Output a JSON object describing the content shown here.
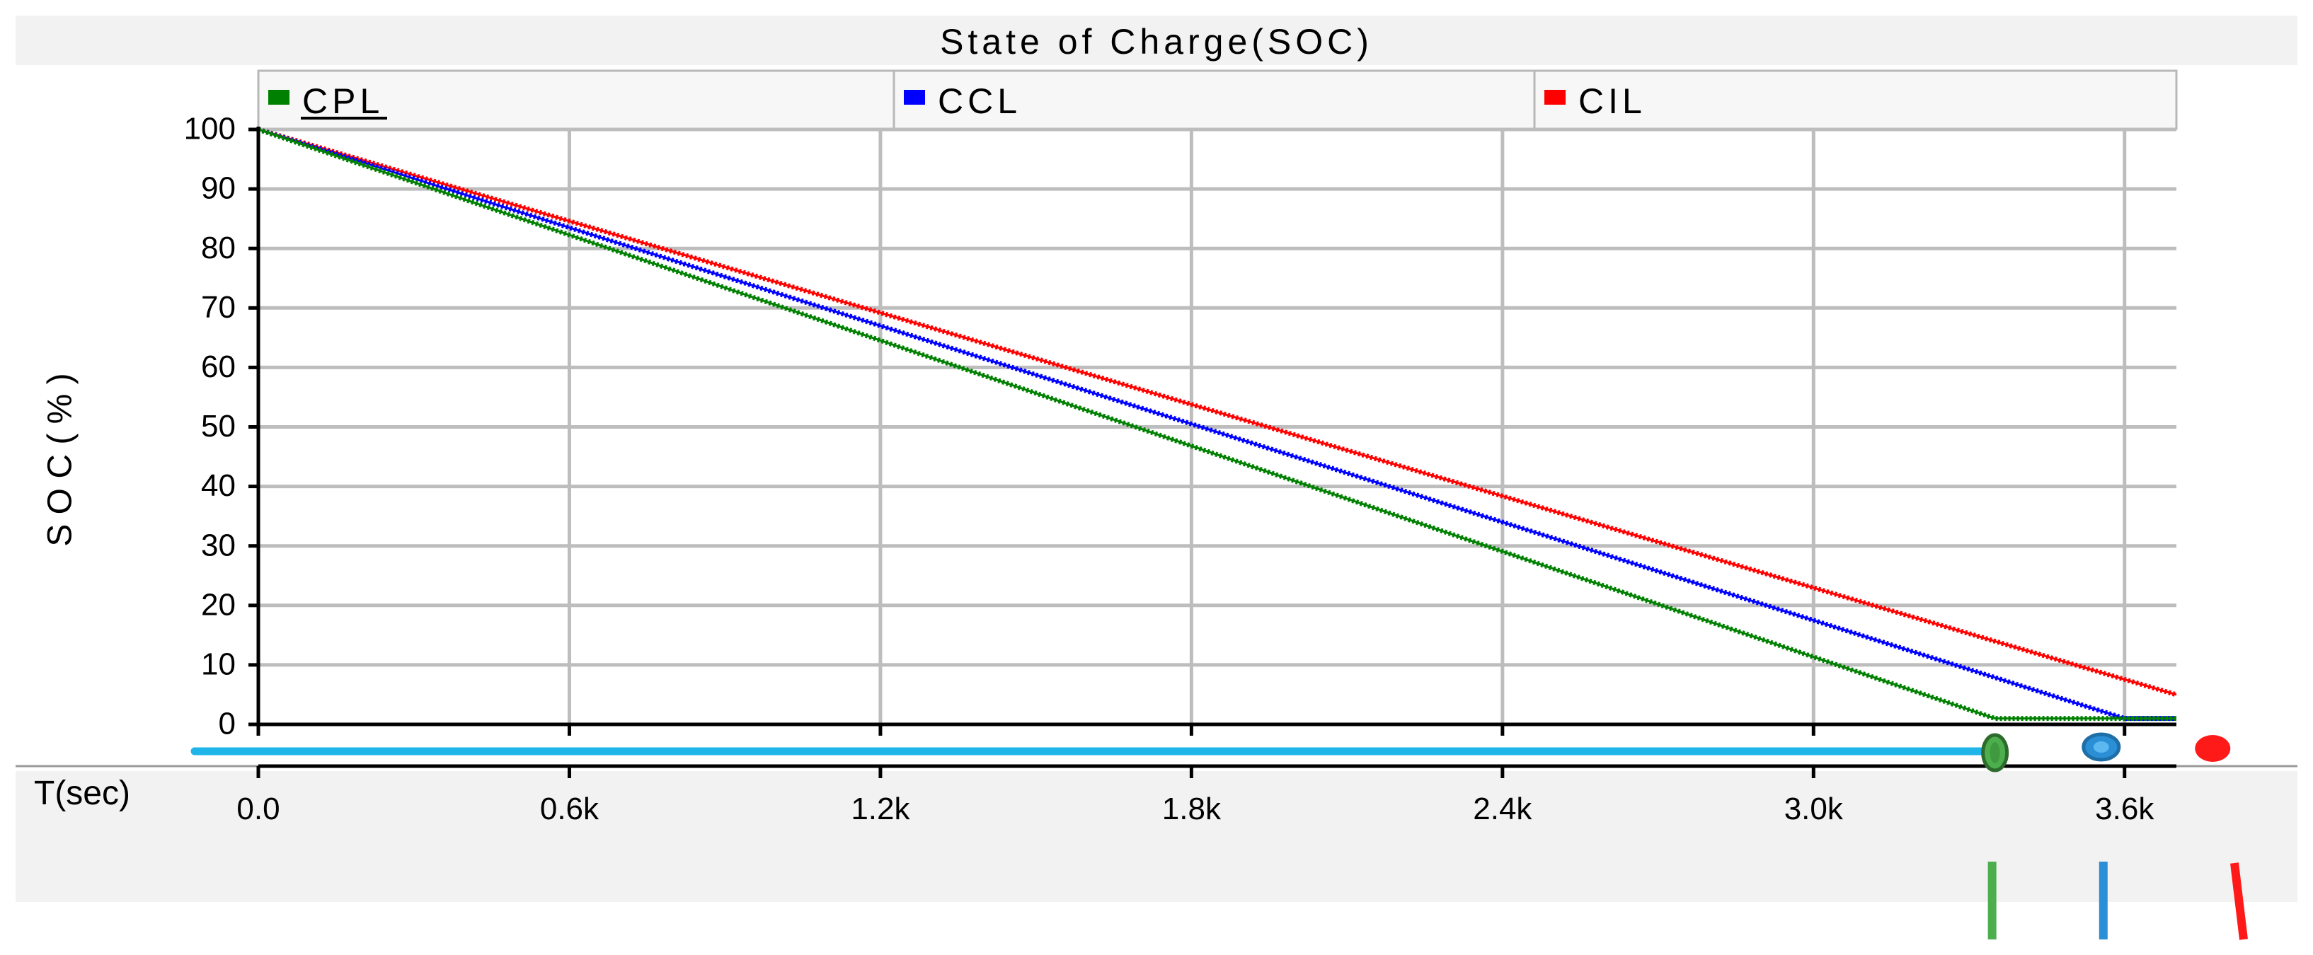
{
  "chart_data": {
    "type": "line",
    "title": "State of Charge(SOC)",
    "ylabel": "S O C  ( % )",
    "xlabel": "T(sec)",
    "xlim": [
      0,
      3700
    ],
    "ylim": [
      0,
      100
    ],
    "yticks": [
      0,
      10,
      20,
      30,
      40,
      50,
      60,
      70,
      80,
      90,
      100
    ],
    "xticks": [
      {
        "value": 0,
        "label": "0.0"
      },
      {
        "value": 600,
        "label": "0.6k"
      },
      {
        "value": 1200,
        "label": "1.2k"
      },
      {
        "value": 1800,
        "label": "1.8k"
      },
      {
        "value": 2400,
        "label": "2.4k"
      },
      {
        "value": 3000,
        "label": "3.0k"
      },
      {
        "value": 3600,
        "label": "3.6k"
      }
    ],
    "grid": true,
    "legend_position": "top",
    "series": [
      {
        "name": "CPL",
        "color": "#008000",
        "x": [
          0,
          3350,
          3700
        ],
        "y": [
          100,
          1,
          1
        ]
      },
      {
        "name": "CCL",
        "color": "#0000ff",
        "x": [
          0,
          3600,
          3700
        ],
        "y": [
          100,
          1,
          1
        ]
      },
      {
        "name": "CIL",
        "color": "#ff0000",
        "x": [
          0,
          3700
        ],
        "y": [
          100,
          5
        ]
      }
    ],
    "time_cursor": {
      "color": "#1fb5e8",
      "end": 3350
    },
    "markers": [
      {
        "series": "CPL",
        "x": 3350,
        "color": "#4cae4c"
      },
      {
        "series": "CCL",
        "x": 3555,
        "color": "#2a8fd4"
      },
      {
        "series": "CIL",
        "x": 3770,
        "color": "#ff1a1a"
      }
    ]
  }
}
